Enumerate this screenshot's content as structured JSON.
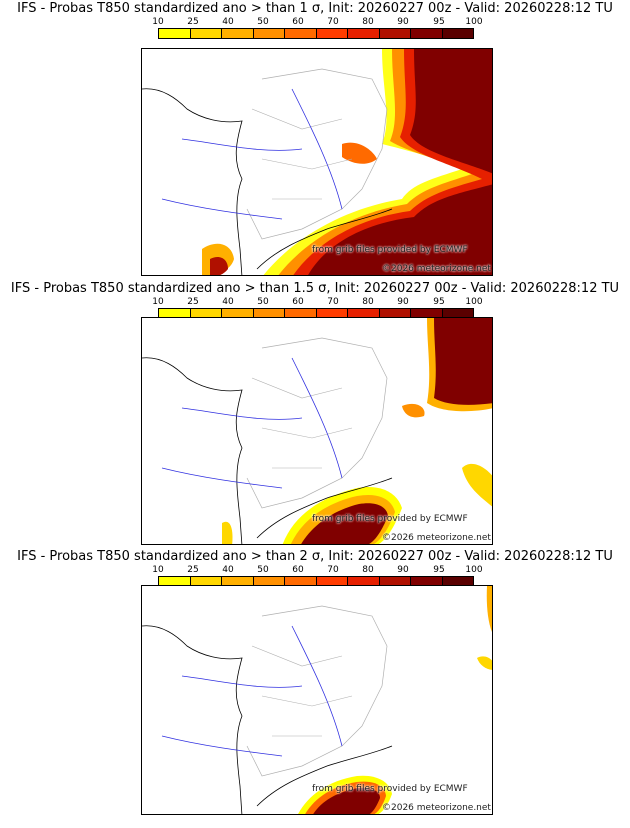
{
  "colors": {
    "scale": [
      "#ffff00",
      "#ffd700",
      "#ffb000",
      "#ff9000",
      "#ff6a00",
      "#ff3c00",
      "#e62000",
      "#b01000",
      "#800000",
      "#5a0000"
    ],
    "border_lines": "#b0b0b0",
    "rivers": "#3030e0",
    "coast": "#000000"
  },
  "legend": {
    "labels": [
      "10",
      "25",
      "40",
      "50",
      "60",
      "70",
      "80",
      "90",
      "95",
      "100"
    ]
  },
  "credits": {
    "source": "from grib files provided by ECMWF",
    "copyright": "©2026 meteorizone.net"
  },
  "panels": [
    {
      "title": "IFS - Probas T850  standardized ano > than 1 σ, Init: 20260227 00z - Valid: 20260228:12 TU",
      "threshold": "1 σ"
    },
    {
      "title": "IFS - Probas T850  standardized ano > than 1.5 σ, Init: 20260227 00z - Valid: 20260228:12 TU",
      "threshold": "1.5 σ"
    },
    {
      "title": "IFS - Probas T850  standardized ano > than 2 σ, Init: 20260227 00z - Valid: 20260228:12 TU",
      "threshold": "2 σ"
    }
  ]
}
